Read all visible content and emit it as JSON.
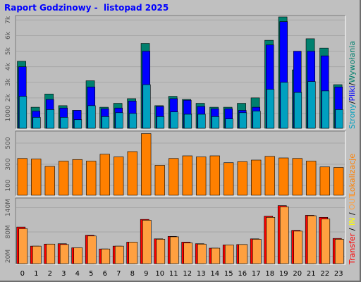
{
  "title": "Raport Godzinowy -  listopad 2025",
  "chart_data": [
    {
      "type": "bar",
      "panel": "pages-files-hits",
      "categories": [
        "0",
        "1",
        "2",
        "3",
        "4",
        "5",
        "6",
        "7",
        "8",
        "9",
        "10",
        "11",
        "12",
        "13",
        "14",
        "15",
        "16",
        "17",
        "18",
        "19",
        "20",
        "21",
        "22",
        "23"
      ],
      "yticks": [
        "1000",
        "2k",
        "3k",
        "4k",
        "5k",
        "6k",
        "7k"
      ],
      "ylim": [
        0,
        7200
      ],
      "series": [
        {
          "name": "Strony",
          "color": "#00a0c0",
          "values": [
            2100,
            750,
            1250,
            750,
            600,
            1500,
            800,
            1050,
            1000,
            2850,
            800,
            1100,
            950,
            950,
            800,
            650,
            1050,
            1150,
            2550,
            3000,
            2350,
            3050,
            2450,
            1250
          ]
        },
        {
          "name": "Pliki",
          "color": "#0000ff",
          "values": [
            4000,
            1150,
            1900,
            1350,
            1200,
            2700,
            1300,
            1350,
            1800,
            5000,
            1450,
            1950,
            1850,
            1450,
            1300,
            1300,
            1200,
            1400,
            5400,
            6900,
            5000,
            5000,
            4700,
            2700
          ]
        },
        {
          "name": "Wywołania",
          "color": "#00806e",
          "values": [
            4350,
            1400,
            2250,
            1500,
            1200,
            3100,
            1400,
            1650,
            1950,
            5500,
            1500,
            2100,
            1900,
            1650,
            1400,
            1400,
            1650,
            2000,
            5700,
            7200,
            3800,
            5800,
            5200,
            2850
          ]
        }
      ],
      "legend": [
        "Strony",
        "/",
        "Pliki",
        "/",
        "Wywołania"
      ],
      "legend_colors": [
        "#00a0c0",
        "#000000",
        "#0000ff",
        "#000000",
        "#00806e"
      ]
    },
    {
      "type": "bar",
      "panel": "visits",
      "categories": [
        "0",
        "1",
        "2",
        "3",
        "4",
        "5",
        "6",
        "7",
        "8",
        "9",
        "10",
        "11",
        "12",
        "13",
        "14",
        "15",
        "16",
        "17",
        "18",
        "19",
        "20",
        "21",
        "22",
        "23"
      ],
      "yticks": [
        "100",
        "300",
        "500"
      ],
      "ylim": [
        0,
        600
      ],
      "series": [
        {
          "name": "Lokalizacje",
          "color": "#ff8000",
          "values": [
            355,
            350,
            280,
            330,
            345,
            330,
            395,
            370,
            420,
            590,
            290,
            355,
            380,
            370,
            380,
            315,
            325,
            340,
            375,
            360,
            355,
            330,
            275,
            270
          ]
        }
      ],
      "legend": [
        "Lokalizacje"
      ],
      "legend_colors": [
        "#ff8000"
      ]
    },
    {
      "type": "bar",
      "panel": "transfer",
      "categories": [
        "0",
        "1",
        "2",
        "3",
        "4",
        "5",
        "6",
        "7",
        "8",
        "9",
        "10",
        "11",
        "12",
        "13",
        "14",
        "15",
        "16",
        "17",
        "18",
        "19",
        "20",
        "21",
        "22",
        "23"
      ],
      "yticks": [
        "20M",
        "80M",
        "140M"
      ],
      "ylim": [
        0,
        160
      ],
      "series": [
        {
          "name": "Transfer",
          "color": "#ff0000",
          "values": [
            92,
            45,
            50,
            51,
            41,
            72,
            38,
            45,
            55,
            111,
            63,
            69,
            55,
            51,
            40,
            48,
            49,
            63,
            119,
            145,
            84,
            121,
            116,
            64
          ]
        },
        {
          "name": "IN",
          "color": "#ffff00",
          "values": [
            0,
            0,
            0,
            0,
            0,
            0,
            0,
            0,
            0,
            0,
            0,
            0,
            0,
            0,
            0,
            0,
            0,
            0,
            0,
            0,
            0,
            0,
            0,
            0
          ]
        },
        {
          "name": "OUT",
          "color": "#ffa040",
          "values": [
            88,
            45,
            50,
            49,
            41,
            70,
            38,
            45,
            55,
            109,
            62,
            68,
            53,
            50,
            40,
            48,
            49,
            62,
            116,
            142,
            82,
            120,
            112,
            62
          ]
        }
      ],
      "legend": [
        "Transfer",
        "/",
        "IN",
        "/",
        "OUT"
      ],
      "legend_colors": [
        "#ff0000",
        "#000000",
        "#ffff00",
        "#000000",
        "#ffa040"
      ]
    }
  ]
}
